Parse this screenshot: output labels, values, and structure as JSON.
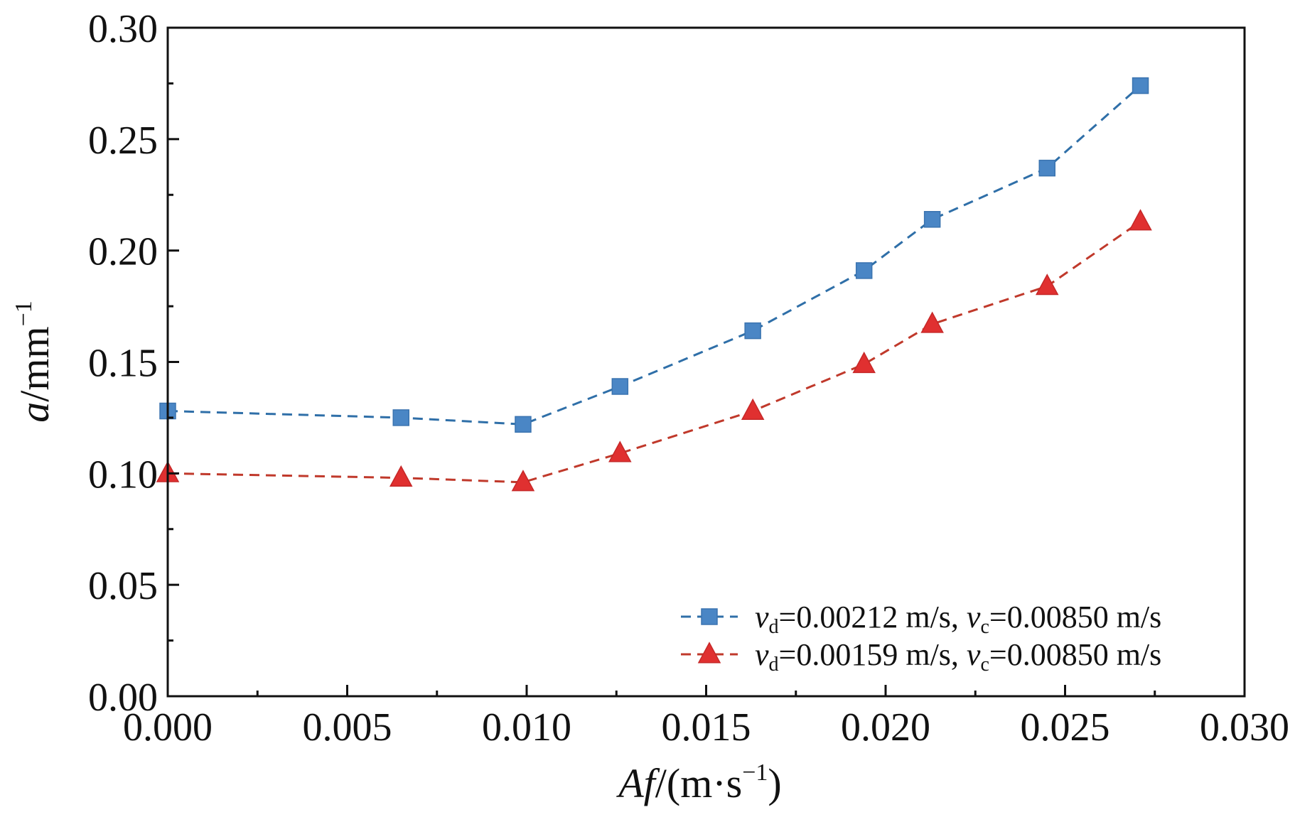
{
  "chart_data": {
    "type": "line",
    "title": "",
    "xlabel": {
      "italic": "Af",
      "rest": "/(m·s",
      "sup": "−1",
      "close": ")"
    },
    "ylabel": {
      "italic": "a",
      "rest": "/mm",
      "sup": "−1"
    },
    "xlim": [
      0,
      0.03
    ],
    "ylim": [
      0,
      0.3
    ],
    "xticks": [
      "0.000",
      "0.005",
      "0.010",
      "0.015",
      "0.020",
      "0.025",
      "0.030"
    ],
    "yticks": [
      "0.00",
      "0.05",
      "0.10",
      "0.15",
      "0.20",
      "0.25",
      "0.30"
    ],
    "grid": false,
    "legend_position": "bottom-right",
    "series": [
      {
        "name": "vd=0.00212 m/s, vc=0.00850 m/s",
        "legend": {
          "v1": "v",
          "s1": "d",
          "t1": "=0.00212 m/s, ",
          "v2": "v",
          "s2": "c",
          "t2": "=0.00850 m/s"
        },
        "marker": "square",
        "color": "#4a86c5",
        "line_color": "#2f6fa8",
        "line_style": "dashed",
        "x": [
          0.0,
          0.0065,
          0.0099,
          0.0126,
          0.0163,
          0.0194,
          0.0213,
          0.0245,
          0.0271
        ],
        "y": [
          0.128,
          0.125,
          0.122,
          0.139,
          0.164,
          0.191,
          0.214,
          0.237,
          0.274
        ]
      },
      {
        "name": "vd=0.00159 m/s, vc=0.00850 m/s",
        "legend": {
          "v1": "v",
          "s1": "d",
          "t1": "=0.00159 m/s, ",
          "v2": "v",
          "s2": "c",
          "t2": "=0.00850 m/s"
        },
        "marker": "triangle",
        "color": "#e03030",
        "line_color": "#c0392b",
        "line_style": "dashed",
        "x": [
          0.0,
          0.0065,
          0.0099,
          0.0126,
          0.0163,
          0.0194,
          0.0213,
          0.0245,
          0.0271
        ],
        "y": [
          0.1,
          0.098,
          0.096,
          0.109,
          0.128,
          0.149,
          0.167,
          0.184,
          0.213
        ]
      }
    ]
  }
}
